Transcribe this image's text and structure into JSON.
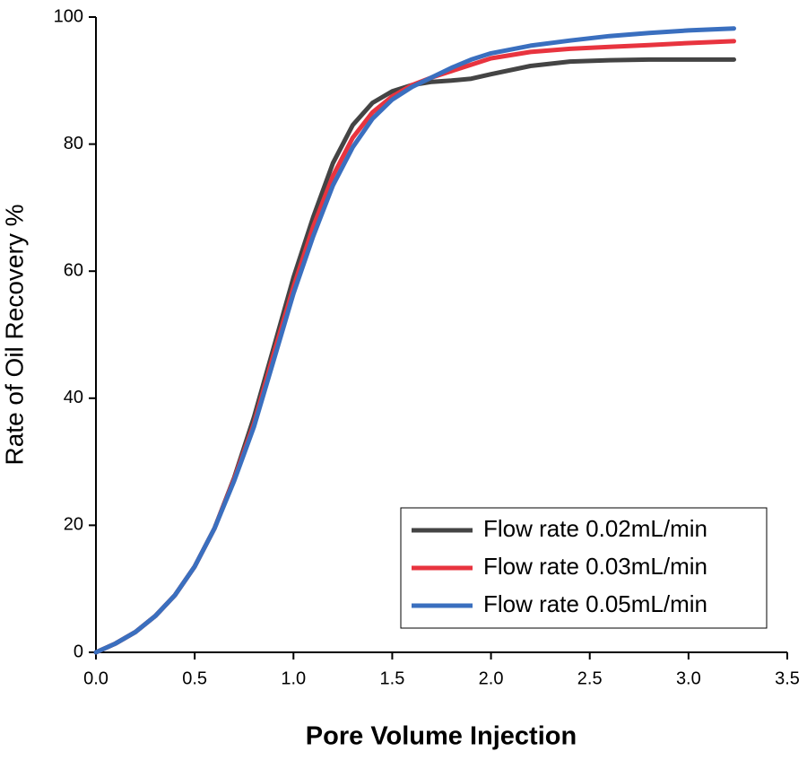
{
  "chart_data": {
    "type": "line",
    "xlabel": "Pore Volume Injection",
    "ylabel": "Rate of Oil Recovery %",
    "x": [
      0,
      0.1,
      0.2,
      0.3,
      0.4,
      0.5,
      0.6,
      0.7,
      0.8,
      0.9,
      1.0,
      1.1,
      1.2,
      1.3,
      1.4,
      1.5,
      1.6,
      1.7,
      1.8,
      1.9,
      2.0,
      2.2,
      2.4,
      2.6,
      2.8,
      3.0,
      3.23
    ],
    "series": [
      {
        "name": "Flow rate 0.02mL/min",
        "color": "#444444",
        "values": [
          0,
          1.4,
          3.2,
          5.7,
          9,
          13.5,
          19.5,
          27.5,
          37,
          48,
          59,
          68.5,
          77,
          83,
          86.5,
          88.3,
          89.3,
          89.8,
          90,
          90.3,
          91,
          92.3,
          93,
          93.2,
          93.3,
          93.3,
          93.3
        ]
      },
      {
        "name": "Flow rate 0.03mL/min",
        "color": "#e8343f",
        "values": [
          0,
          1.4,
          3.2,
          5.7,
          9,
          13.5,
          19.5,
          27.3,
          36,
          47,
          57.5,
          67,
          75,
          81,
          85,
          87.5,
          89.3,
          90.5,
          91.5,
          92.5,
          93.5,
          94.5,
          95,
          95.3,
          95.6,
          95.9,
          96.2
        ]
      },
      {
        "name": "Flow rate 0.05mL/min",
        "color": "#3a6fbf",
        "values": [
          0,
          1.4,
          3.2,
          5.7,
          9,
          13.5,
          19.5,
          27,
          35.5,
          46,
          56.5,
          65.5,
          73.5,
          79.5,
          84,
          87,
          89,
          90.5,
          92,
          93.3,
          94.3,
          95.5,
          96.3,
          97,
          97.5,
          97.9,
          98.2
        ]
      }
    ],
    "xlim": [
      0,
      3.5
    ],
    "xticks": [
      {
        "value": 0,
        "label": "0.0"
      },
      0.5,
      {
        "value": 1,
        "label": "1.0"
      },
      1.5,
      {
        "value": 2,
        "label": "2.0"
      },
      2.5,
      {
        "value": 3,
        "label": "3.0"
      },
      3.5
    ],
    "ylim": [
      0,
      100
    ],
    "yticks": [
      0,
      20,
      40,
      60,
      80,
      100
    ],
    "legend": "lower right"
  }
}
